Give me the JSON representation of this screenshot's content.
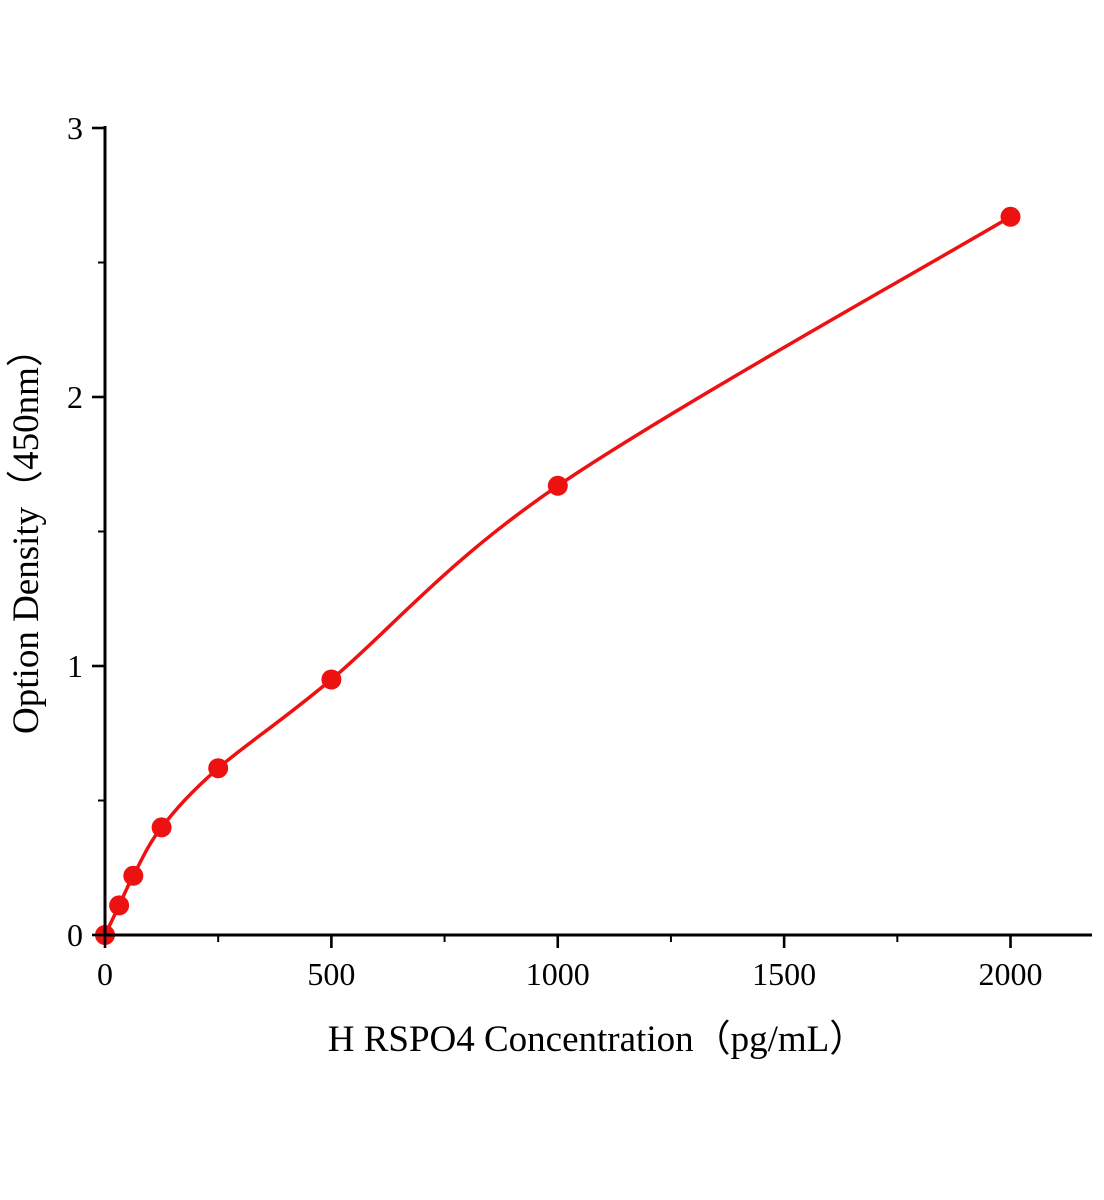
{
  "chart_data": {
    "type": "scatter",
    "title": "",
    "xlabel": "H RSPO4 Concentration（pg/mL）",
    "ylabel": "Option Density（450nm）",
    "x": [
      0,
      31.25,
      62.5,
      125,
      250,
      500,
      1000,
      2000
    ],
    "y": [
      0,
      0.11,
      0.22,
      0.4,
      0.62,
      0.95,
      1.67,
      2.67
    ],
    "xlim": [
      0,
      2180
    ],
    "ylim": [
      0,
      3
    ],
    "x_major_ticks": [
      0,
      500,
      1000,
      1500,
      2000
    ],
    "x_minor_step": 250,
    "y_major_ticks": [
      0,
      1,
      2,
      3
    ],
    "y_minor_step": 0.5,
    "point_color": "#ee1111",
    "line_color": "#ee1111",
    "axis_color": "#000000",
    "grid": false,
    "legend": null,
    "fit_type": "smooth-curve-through-points"
  }
}
